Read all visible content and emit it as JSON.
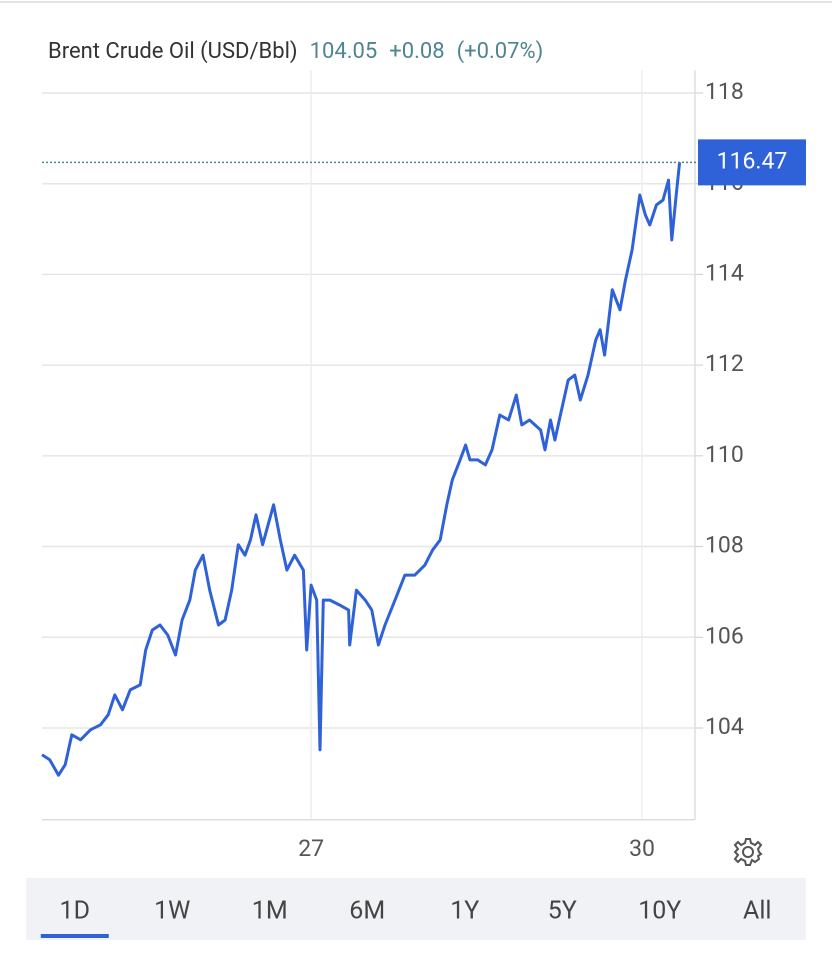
{
  "chart_data": {
    "type": "line",
    "title": "Brent Crude Oil (USD/Bbl)",
    "quote": {
      "last": "104.05",
      "change": "+0.08",
      "change_pct": "(+0.07%)"
    },
    "x": [
      24.56,
      24.63,
      24.71,
      24.77,
      24.83,
      24.91,
      25.0,
      25.09,
      25.16,
      25.22,
      25.29,
      25.36,
      25.45,
      25.5,
      25.56,
      25.63,
      25.7,
      25.77,
      25.83,
      25.9,
      25.95,
      26.02,
      26.08,
      26.16,
      26.22,
      26.28,
      26.34,
      26.4,
      26.45,
      26.5,
      26.56,
      26.61,
      26.66,
      26.72,
      26.78,
      26.85,
      26.93,
      26.96,
      27.0,
      27.05,
      27.08,
      27.11,
      27.17,
      27.26,
      27.34,
      27.35,
      27.41,
      27.49,
      27.55,
      27.61,
      27.67,
      27.76,
      27.85,
      27.94,
      28.03,
      28.1,
      28.17,
      28.23,
      28.28,
      28.35,
      28.4,
      28.44,
      28.51,
      28.58,
      28.64,
      28.71,
      28.79,
      28.86,
      28.91,
      28.98,
      29.08,
      29.12,
      29.17,
      29.21,
      29.26,
      29.33,
      29.39,
      29.44,
      29.51,
      29.58,
      29.62,
      29.66,
      29.73,
      29.8,
      29.85,
      29.91,
      29.98,
      30.03,
      30.07,
      30.13,
      30.19,
      30.24,
      30.27,
      30.31,
      30.34
    ],
    "series": [
      {
        "name": "Brent Crude Oil",
        "color": "#2f62d8",
        "values": [
          103.41,
          103.3,
          102.96,
          103.19,
          103.85,
          103.74,
          103.96,
          104.07,
          104.29,
          104.73,
          104.4,
          104.84,
          104.95,
          105.72,
          106.16,
          106.27,
          106.05,
          105.61,
          106.38,
          106.82,
          107.48,
          107.81,
          107.04,
          106.27,
          106.38,
          107.04,
          108.04,
          107.81,
          108.15,
          108.7,
          108.04,
          108.48,
          108.92,
          108.15,
          107.48,
          107.81,
          107.48,
          105.72,
          107.15,
          106.82,
          103.52,
          106.82,
          106.82,
          106.71,
          106.6,
          105.83,
          107.04,
          106.82,
          106.6,
          105.83,
          106.27,
          106.82,
          107.37,
          107.37,
          107.59,
          107.92,
          108.15,
          108.92,
          109.47,
          109.91,
          110.24,
          109.91,
          109.91,
          109.8,
          110.13,
          110.9,
          110.79,
          111.34,
          110.68,
          110.79,
          110.57,
          110.13,
          110.79,
          110.35,
          110.9,
          111.67,
          111.78,
          111.23,
          111.78,
          112.55,
          112.78,
          112.22,
          113.66,
          113.22,
          113.88,
          114.54,
          115.75,
          115.31,
          115.09,
          115.53,
          115.64,
          116.08,
          114.76,
          115.75,
          116.47
        ]
      }
    ],
    "xlim": [
      24.56,
      30.48
    ],
    "xticks": [
      27,
      30
    ],
    "ylim": [
      102,
      118.5
    ],
    "yticks": [
      104,
      106,
      108,
      110,
      112,
      114,
      116,
      118
    ],
    "grid": true,
    "ranges": [
      "1D",
      "1W",
      "1M",
      "6M",
      "1Y",
      "5Y",
      "10Y",
      "All"
    ],
    "selected_range": 0
  }
}
